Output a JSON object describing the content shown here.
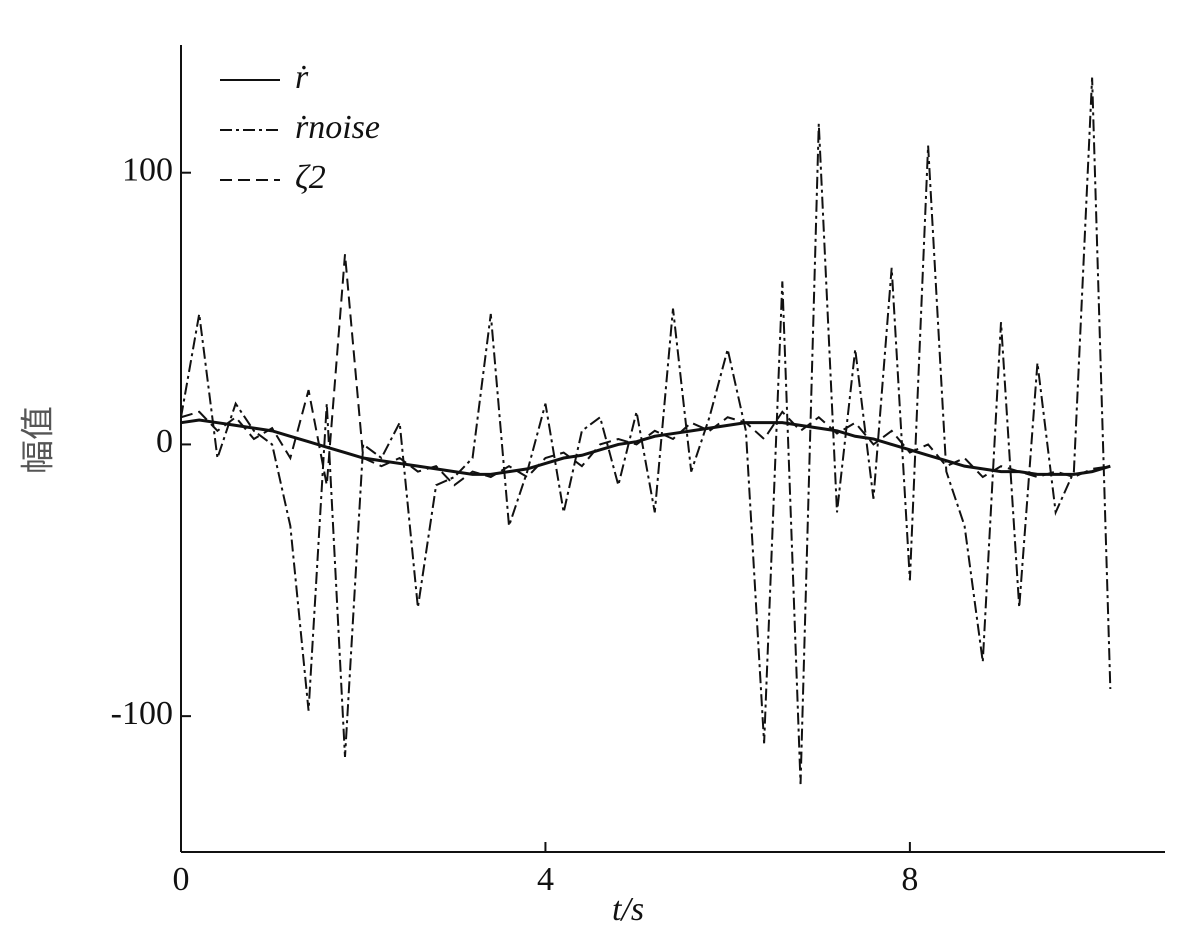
{
  "chart_data": {
    "type": "line",
    "xlabel": "t/s",
    "ylabel": "幅值",
    "x": [
      0,
      0.2,
      0.4,
      0.6,
      0.8,
      1.0,
      1.2,
      1.4,
      1.6,
      1.8,
      2.0,
      2.2,
      2.4,
      2.6,
      2.8,
      3.0,
      3.2,
      3.4,
      3.6,
      3.8,
      4.0,
      4.2,
      4.4,
      4.6,
      4.8,
      5.0,
      5.2,
      5.4,
      5.6,
      5.8,
      6.0,
      6.2,
      6.4,
      6.6,
      6.8,
      7.0,
      7.2,
      7.4,
      7.6,
      7.8,
      8.0,
      8.2,
      8.4,
      8.6,
      8.8,
      9.0,
      9.2,
      9.4,
      9.6,
      9.8,
      10.0,
      10.2
    ],
    "series": [
      {
        "name": "ṙ",
        "color": "#111111",
        "linestyle": "solid",
        "values": [
          8,
          9,
          8,
          7,
          6,
          5,
          3,
          1,
          -1,
          -3,
          -5,
          -6,
          -7,
          -8,
          -9,
          -10,
          -11,
          -11,
          -10,
          -9,
          -7,
          -5,
          -4,
          -2,
          0,
          1,
          3,
          4,
          5,
          6,
          7,
          8,
          8,
          8,
          7,
          6,
          5,
          3,
          2,
          0,
          -2,
          -4,
          -6,
          -8,
          -9,
          -10,
          -10,
          -11,
          -11,
          -11,
          -10,
          -8
        ]
      },
      {
        "name": "ṙnoise",
        "color": "#111111",
        "linestyle": "dashdot",
        "values": [
          10,
          48,
          -5,
          15,
          5,
          0,
          -30,
          -98,
          15,
          -115,
          0,
          -5,
          8,
          -60,
          -15,
          -12,
          -5,
          48,
          -30,
          -10,
          15,
          -25,
          5,
          10,
          -15,
          12,
          -25,
          50,
          -10,
          10,
          35,
          5,
          -110,
          60,
          -125,
          118,
          -25,
          35,
          -20,
          65,
          -50,
          110,
          -10,
          -30,
          -80,
          45,
          -60,
          30,
          -25,
          -10,
          135,
          -90
        ]
      },
      {
        "name": "ζ2",
        "color": "#111111",
        "linestyle": "dashed",
        "values": [
          10,
          12,
          5,
          10,
          2,
          6,
          -5,
          20,
          -15,
          70,
          -5,
          -8,
          -5,
          -10,
          -8,
          -15,
          -10,
          -12,
          -8,
          -12,
          -5,
          -3,
          -8,
          0,
          2,
          0,
          5,
          2,
          8,
          5,
          10,
          8,
          2,
          12,
          5,
          10,
          4,
          8,
          0,
          5,
          -3,
          0,
          -8,
          -5,
          -12,
          -8,
          -10,
          -12,
          -10,
          -12,
          -9,
          -8
        ]
      }
    ],
    "xlim": [
      0,
      10.8
    ],
    "ylim": [
      -150,
      147
    ],
    "xticks": [
      0,
      4,
      8
    ],
    "yticks": [
      -100,
      0,
      100
    ],
    "grid": false,
    "legend": "upper left"
  }
}
